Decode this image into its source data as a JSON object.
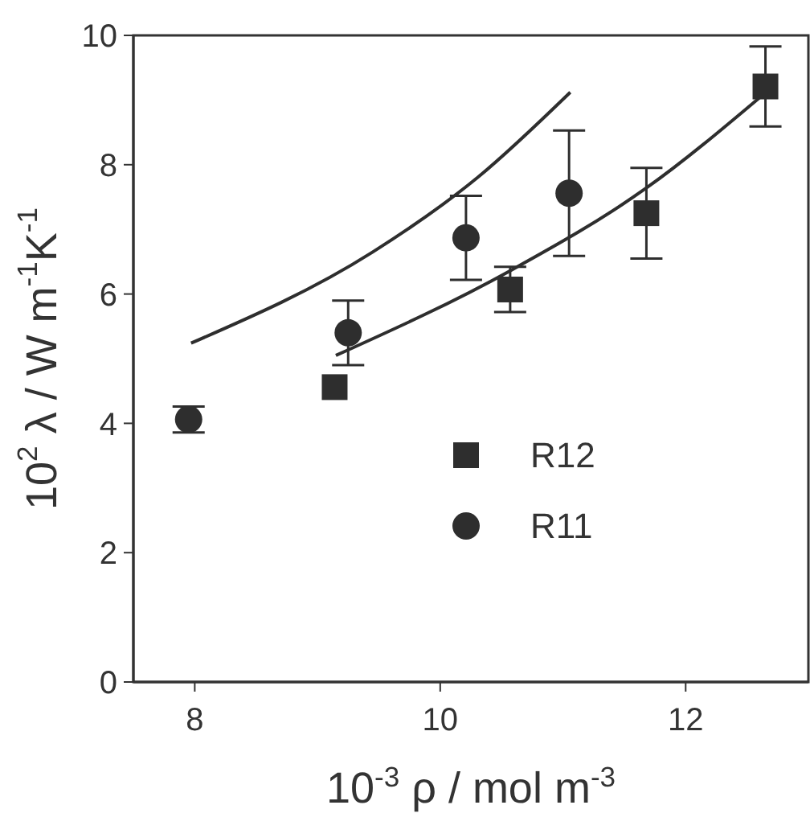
{
  "chart_data": {
    "type": "scatter",
    "xlabel": "10$^{-3}$ ρ / mol m$^{-3}$",
    "ylabel": "10$^{2}$ λ / W m$^{-1}$K$^{-1}$",
    "xlim": [
      7.5,
      13
    ],
    "xticks": [
      8,
      10,
      12
    ],
    "ylim": [
      0,
      10
    ],
    "yticks": [
      0,
      2,
      4,
      6,
      8,
      10
    ],
    "grid": false,
    "legend": "center",
    "series": [
      {
        "name": "R12",
        "marker": "square",
        "color": "#2e2e2e",
        "x": [
          9.14,
          10.57,
          11.68,
          12.65
        ],
        "values": [
          4.56,
          6.07,
          7.25,
          9.21
        ],
        "errors": [
          null,
          0.35,
          0.7,
          0.62
        ]
      },
      {
        "name": "R11",
        "marker": "circle",
        "color": "#2e2e2e",
        "x": [
          7.95,
          9.25,
          10.21,
          11.05
        ],
        "values": [
          4.06,
          5.4,
          6.87,
          7.56
        ],
        "errors": [
          0.2,
          0.5,
          0.65,
          0.97
        ]
      },
      {
        "type": "line",
        "marker": "none",
        "color": "#2e2e2e",
        "x": [
          7.97,
          9.45,
          10.31,
          11.06
        ],
        "values": [
          5.24,
          6.65,
          7.81,
          9.12
        ]
      },
      {
        "type": "line",
        "marker": "none",
        "color": "#2e2e2e",
        "x": [
          9.15,
          10.57,
          11.68,
          12.61
        ],
        "values": [
          5.05,
          6.36,
          7.64,
          9.05
        ]
      }
    ]
  }
}
